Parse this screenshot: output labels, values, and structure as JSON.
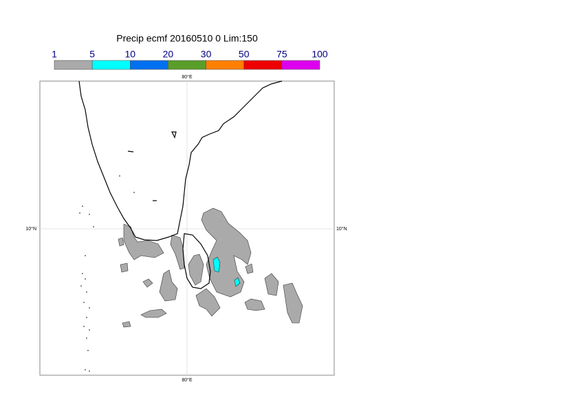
{
  "title": "Precip ecmf 20160510 0 Lim:150",
  "colorbar": {
    "bounds": [
      1,
      5,
      10,
      20,
      30,
      50,
      75,
      100
    ],
    "colors": [
      "#aaaaaa",
      "#00ffff",
      "#0070f0",
      "#5a9e2a",
      "#ff8000",
      "#ee0000",
      "#dd00ee"
    ]
  },
  "map": {
    "lon_label_top": "80°E",
    "lon_label_bottom": "80°E",
    "lat_label_left": "10°N",
    "lat_label_right": "10°N"
  }
}
